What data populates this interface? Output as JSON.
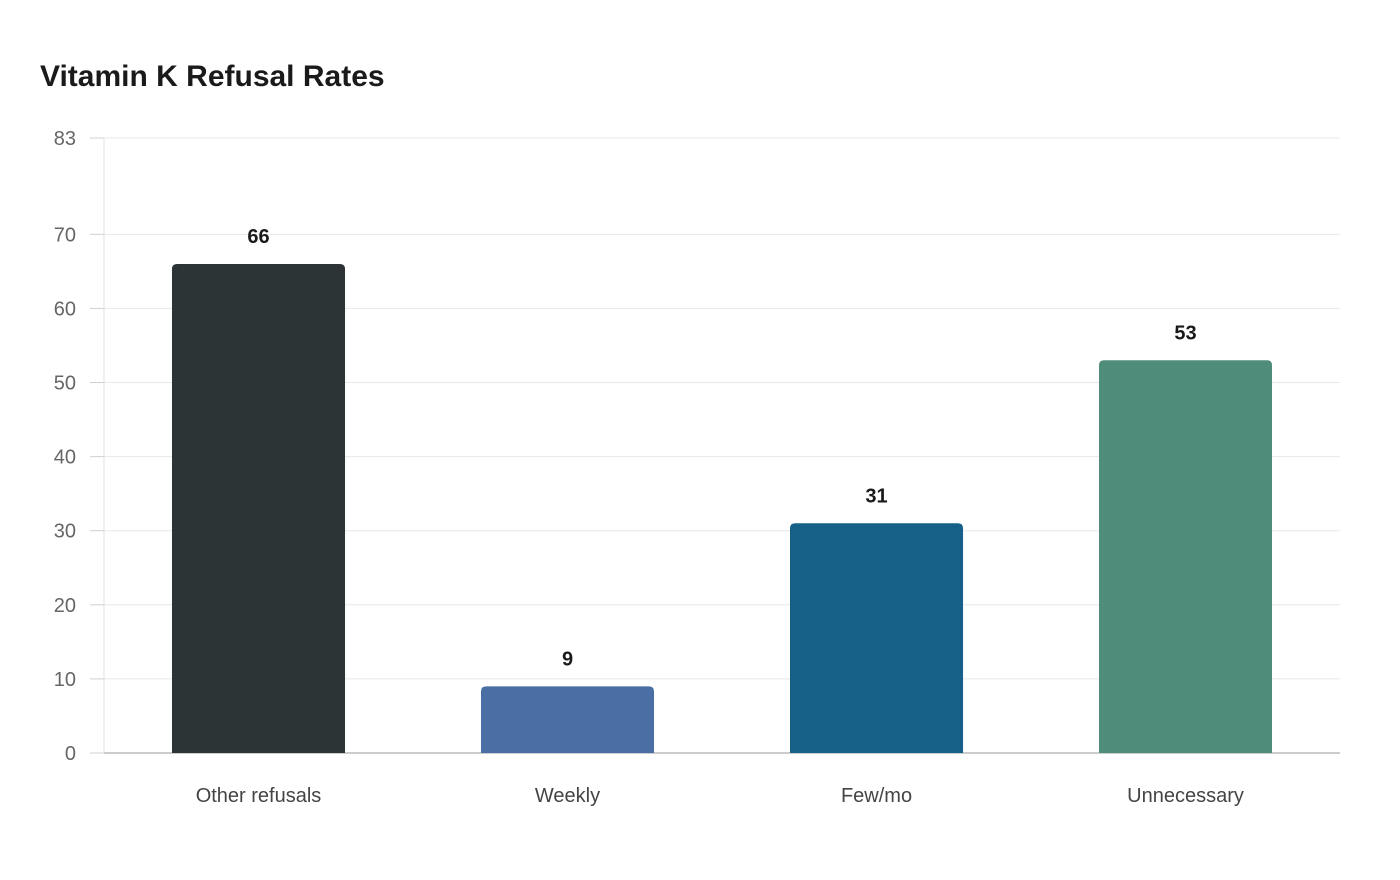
{
  "chart_data": {
    "type": "bar",
    "title": "Vitamin K Refusal Rates",
    "xlabel": "",
    "ylabel": "",
    "ylim": [
      0,
      83
    ],
    "yticks": [
      0,
      10,
      20,
      30,
      40,
      50,
      60,
      70,
      83
    ],
    "grid": true,
    "legend": "none",
    "categories": [
      "Other refusals",
      "Weekly",
      "Few/mo",
      "Unnecessary"
    ],
    "values": [
      66,
      9,
      31,
      53
    ],
    "colors": [
      "#2d3436",
      "#4a6fa5",
      "#166088",
      "#4f8d7a"
    ]
  }
}
